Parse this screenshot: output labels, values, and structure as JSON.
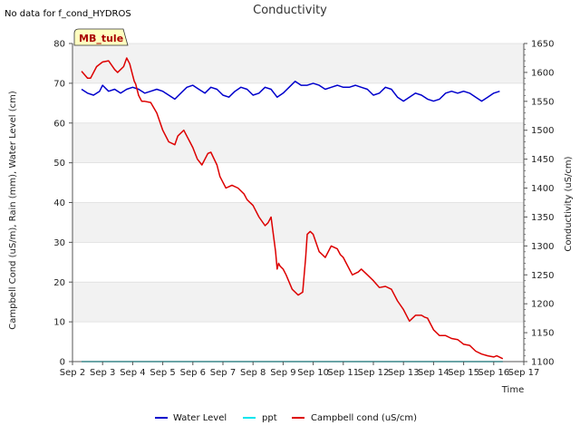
{
  "note": "No data for f_cond_HYDROS",
  "site_badge": "MB_tule",
  "chart_data": {
    "type": "line",
    "title": "Conductivity",
    "xlabel": "Time",
    "ylabel_left": "Campbell Cond (uS/m), Rain (mm), Water Level (cm)",
    "ylabel_right": "Conductivity (uS/cm)",
    "x_tick_labels": [
      "Sep 2",
      "Sep 3",
      "Sep 4",
      "Sep 5",
      "Sep 6",
      "Sep 7",
      "Sep 8",
      "Sep 9",
      "Sep 10",
      "Sep 11",
      "Sep 12",
      "Sep 13",
      "Sep 14",
      "Sep 15",
      "Sep 16",
      "Sep 17"
    ],
    "xlim": [
      2,
      17
    ],
    "ylim_left": [
      0,
      80
    ],
    "ylim_right": [
      1100,
      1650
    ],
    "y_ticks_left": [
      0,
      10,
      20,
      30,
      40,
      50,
      60,
      70,
      80
    ],
    "y_ticks_right": [
      1100,
      1150,
      1200,
      1250,
      1300,
      1350,
      1400,
      1450,
      1500,
      1550,
      1600,
      1650
    ],
    "legend_position": "bottom-center",
    "series": [
      {
        "name": "Water Level",
        "color": "#0000cc",
        "axis": "left",
        "x": [
          2.3,
          2.5,
          2.7,
          2.9,
          3.0,
          3.2,
          3.4,
          3.6,
          3.8,
          4.0,
          4.2,
          4.4,
          4.6,
          4.8,
          5.0,
          5.2,
          5.4,
          5.6,
          5.8,
          6.0,
          6.2,
          6.4,
          6.6,
          6.8,
          7.0,
          7.2,
          7.4,
          7.6,
          7.8,
          8.0,
          8.2,
          8.4,
          8.6,
          8.8,
          9.0,
          9.2,
          9.4,
          9.6,
          9.8,
          10.0,
          10.2,
          10.4,
          10.6,
          10.8,
          11.0,
          11.2,
          11.4,
          11.6,
          11.8,
          12.0,
          12.2,
          12.4,
          12.6,
          12.8,
          13.0,
          13.2,
          13.4,
          13.6,
          13.8,
          14.0,
          14.2,
          14.4,
          14.6,
          14.8,
          15.0,
          15.2,
          15.4,
          15.6,
          15.8,
          16.0,
          16.2
        ],
        "y": [
          68.5,
          67.5,
          67.0,
          68.0,
          69.5,
          68.0,
          68.5,
          67.5,
          68.5,
          69.0,
          68.5,
          67.5,
          68.0,
          68.5,
          68.0,
          67.0,
          66.0,
          67.5,
          69.0,
          69.5,
          68.5,
          67.5,
          69.0,
          68.5,
          67.0,
          66.5,
          68.0,
          69.0,
          68.5,
          67.0,
          67.5,
          69.0,
          68.5,
          66.5,
          67.5,
          69.0,
          70.5,
          69.5,
          69.5,
          70.0,
          69.5,
          68.5,
          69.0,
          69.5,
          69.0,
          69.0,
          69.5,
          69.0,
          68.5,
          67.0,
          67.5,
          69.0,
          68.5,
          66.5,
          65.5,
          66.5,
          67.5,
          67.0,
          66.0,
          65.5,
          66.0,
          67.5,
          68.0,
          67.5,
          68.0,
          67.5,
          66.5,
          65.5,
          66.5,
          67.5,
          68.0
        ]
      },
      {
        "name": "ppt",
        "color": "#00e5ee",
        "axis": "left",
        "x": [
          2.3,
          16.3
        ],
        "y": [
          0,
          0
        ]
      },
      {
        "name": "Campbell cond (uS/cm)",
        "color": "#dd0000",
        "axis": "right",
        "x": [
          2.3,
          2.5,
          2.6,
          2.8,
          3.0,
          3.2,
          3.4,
          3.5,
          3.7,
          3.8,
          3.9,
          4.0,
          4.05,
          4.1,
          4.2,
          4.3,
          4.4,
          4.6,
          4.8,
          5.0,
          5.2,
          5.4,
          5.5,
          5.7,
          5.9,
          6.0,
          6.15,
          6.3,
          6.5,
          6.6,
          6.8,
          6.9,
          7.0,
          7.1,
          7.3,
          7.5,
          7.7,
          7.8,
          8.0,
          8.2,
          8.4,
          8.5,
          8.6,
          8.75,
          8.8,
          8.85,
          8.9,
          9.0,
          9.1,
          9.3,
          9.5,
          9.65,
          9.75,
          9.8,
          9.9,
          10.0,
          10.2,
          10.4,
          10.6,
          10.8,
          10.9,
          11.0,
          11.1,
          11.3,
          11.5,
          11.6,
          11.8,
          12.0,
          12.2,
          12.4,
          12.6,
          12.8,
          13.0,
          13.2,
          13.4,
          13.6,
          13.7,
          13.8,
          13.9,
          14.0,
          14.2,
          14.4,
          14.6,
          14.8,
          15.0,
          15.2,
          15.4,
          15.6,
          15.8,
          16.0,
          16.1,
          16.3
        ],
        "y": [
          1602,
          1590,
          1590,
          1610,
          1618,
          1620,
          1605,
          1600,
          1610,
          1625,
          1615,
          1595,
          1585,
          1580,
          1560,
          1550,
          1550,
          1548,
          1530,
          1500,
          1480,
          1475,
          1490,
          1500,
          1480,
          1470,
          1450,
          1440,
          1460,
          1462,
          1440,
          1420,
          1410,
          1400,
          1405,
          1400,
          1390,
          1380,
          1370,
          1350,
          1335,
          1340,
          1350,
          1290,
          1260,
          1270,
          1265,
          1260,
          1250,
          1225,
          1215,
          1220,
          1280,
          1320,
          1325,
          1320,
          1290,
          1280,
          1300,
          1295,
          1285,
          1280,
          1270,
          1250,
          1255,
          1260,
          1250,
          1240,
          1228,
          1230,
          1225,
          1205,
          1190,
          1170,
          1180,
          1180,
          1177,
          1175,
          1165,
          1155,
          1145,
          1145,
          1140,
          1138,
          1130,
          1128,
          1118,
          1113,
          1110,
          1108,
          1110,
          1105
        ]
      }
    ]
  }
}
